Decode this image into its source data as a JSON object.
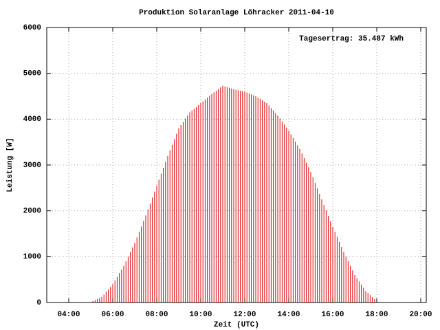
{
  "chart_data": {
    "type": "impulse",
    "title": "Produktion Solaranlage Löhracker 2011-04-10",
    "x_label": "Zeit (UTC)",
    "y_label": "Leistung [W]",
    "annotation": "Tagesertrag: 35.487 kWh",
    "xlim": [
      3,
      20.25
    ],
    "ylim": [
      0,
      6000
    ],
    "xticks": [
      {
        "value": 4,
        "label": "04:00"
      },
      {
        "value": 6,
        "label": "06:00"
      },
      {
        "value": 8,
        "label": "08:00"
      },
      {
        "value": 10,
        "label": "10:00"
      },
      {
        "value": 12,
        "label": "12:00"
      },
      {
        "value": 14,
        "label": "14:00"
      },
      {
        "value": 16,
        "label": "16:00"
      },
      {
        "value": 18,
        "label": "18:00"
      },
      {
        "value": 20,
        "label": "20:00"
      }
    ],
    "yticks": [
      0,
      1000,
      2000,
      3000,
      4000,
      5000,
      6000
    ],
    "grid": true,
    "color": "#e00000",
    "x": [
      5,
      5.1,
      5.2,
      5.3,
      5.4,
      5.5,
      5.6,
      5.7,
      5.8,
      5.9,
      6,
      6.1,
      6.2,
      6.3,
      6.4,
      6.5,
      6.6,
      6.7,
      6.8,
      6.9,
      7,
      7.1,
      7.2,
      7.3,
      7.4,
      7.5,
      7.6,
      7.7,
      7.8,
      7.9,
      8,
      8.1,
      8.2,
      8.3,
      8.4,
      8.5,
      8.6,
      8.7,
      8.8,
      8.9,
      9,
      9.1,
      9.2,
      9.3,
      9.4,
      9.5,
      9.6,
      9.7,
      9.8,
      9.9,
      10,
      10.1,
      10.2,
      10.3,
      10.4,
      10.5,
      10.6,
      10.7,
      10.8,
      10.9,
      11,
      11.1,
      11.2,
      11.3,
      11.4,
      11.5,
      11.6,
      11.7,
      11.8,
      11.9,
      12,
      12.1,
      12.2,
      12.3,
      12.4,
      12.5,
      12.6,
      12.7,
      12.8,
      12.9,
      13,
      13.1,
      13.2,
      13.3,
      13.4,
      13.5,
      13.6,
      13.7,
      13.8,
      13.9,
      14,
      14.1,
      14.2,
      14.3,
      14.4,
      14.5,
      14.6,
      14.7,
      14.8,
      14.9,
      15,
      15.1,
      15.2,
      15.3,
      15.4,
      15.5,
      15.6,
      15.7,
      15.8,
      15.9,
      16,
      16.1,
      16.2,
      16.3,
      16.4,
      16.5,
      16.6,
      16.7,
      16.8,
      16.9,
      17,
      17.1,
      17.2,
      17.3,
      17.4,
      17.5,
      17.6,
      17.7,
      17.8,
      17.9,
      18
    ],
    "values": [
      10,
      32,
      54,
      76,
      98,
      120,
      176,
      232,
      288,
      344,
      400,
      480,
      560,
      640,
      720,
      800,
      900,
      1000,
      1100,
      1200,
      1300,
      1420,
      1540,
      1660,
      1780,
      1900,
      2030,
      2160,
      2290,
      2420,
      2550,
      2680,
      2810,
      2940,
      3070,
      3200,
      3320,
      3440,
      3560,
      3680,
      3800,
      3870,
      3940,
      4010,
      4080,
      4150,
      4190,
      4230,
      4270,
      4310,
      4350,
      4390,
      4430,
      4470,
      4510,
      4550,
      4586,
      4622,
      4658,
      4694,
      4730,
      4714,
      4698,
      4682,
      4666,
      4650,
      4640,
      4630,
      4620,
      4610,
      4600,
      4580,
      4560,
      4540,
      4520,
      4500,
      4470,
      4440,
      4410,
      4380,
      4350,
      4296,
      4242,
      4188,
      4134,
      4080,
      4014,
      3948,
      3882,
      3816,
      3750,
      3670,
      3590,
      3510,
      3430,
      3350,
      3250,
      3150,
      3050,
      2950,
      2850,
      2730,
      2610,
      2490,
      2370,
      2250,
      2130,
      2010,
      1890,
      1770,
      1650,
      1540,
      1430,
      1320,
      1210,
      1100,
      1000,
      900,
      800,
      700,
      600,
      530,
      460,
      390,
      320,
      250,
      206,
      162,
      118,
      74,
      30
    ]
  }
}
